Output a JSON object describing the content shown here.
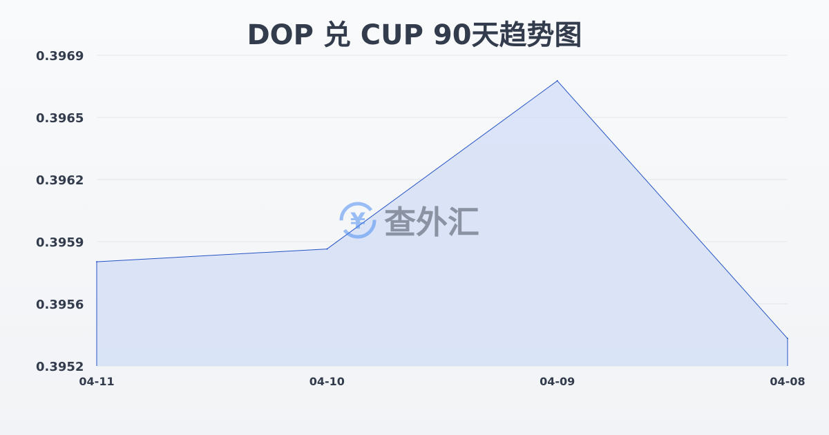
{
  "chart_data": {
    "type": "area",
    "title": "DOP 兑 CUP 90天趋势图",
    "xlabel": "",
    "ylabel": "",
    "categories": [
      "04-11",
      "04-10",
      "04-09",
      "04-08"
    ],
    "values": [
      0.39577,
      0.39584,
      0.39676,
      0.39535
    ],
    "ylim": [
      0.3952,
      0.3969
    ],
    "yticks": [
      "0.3969",
      "0.3965",
      "0.3962",
      "0.3959",
      "0.3956",
      "0.3952"
    ],
    "grid": true,
    "colors": {
      "line": "#2553c6",
      "fill": "#d6e1f7",
      "grid": "#e3e6ea",
      "text": "#333c4c"
    }
  },
  "watermark": {
    "text": "查外汇",
    "icon": "yuan-exchange-icon"
  }
}
